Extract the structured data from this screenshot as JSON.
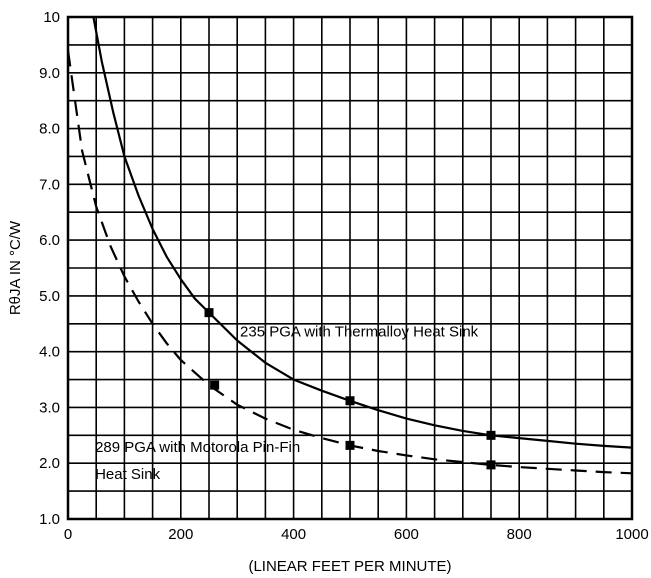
{
  "chart_data": {
    "type": "line",
    "title": "",
    "xlabel": "(LINEAR FEET PER MINUTE)",
    "ylabel": "RθJA IN °C/W",
    "xlim": [
      0,
      1000
    ],
    "ylim": [
      1.0,
      10
    ],
    "x_ticks": [
      0,
      200,
      400,
      600,
      800,
      1000
    ],
    "x_tick_labels": [
      "0",
      "200",
      "400",
      "600",
      "800",
      "1000"
    ],
    "y_ticks": [
      1.0,
      2.0,
      3.0,
      4.0,
      5.0,
      6.0,
      7.0,
      8.0,
      9.0,
      10
    ],
    "y_tick_labels": [
      "1.0",
      "2.0",
      "3.0",
      "4.0",
      "5.0",
      "6.0",
      "7.0",
      "8.0",
      "9.0",
      "10"
    ],
    "grid": true,
    "series": [
      {
        "name": "235 PGA with Thermalloy Heat Sink",
        "style": "solid",
        "x": [
          45,
          60,
          80,
          100,
          125,
          150,
          175,
          200,
          225,
          250,
          300,
          350,
          400,
          450,
          500,
          550,
          600,
          650,
          700,
          750,
          800,
          850,
          900,
          950,
          1000
        ],
        "values": [
          10.0,
          9.2,
          8.3,
          7.5,
          6.8,
          6.2,
          5.7,
          5.3,
          4.95,
          4.7,
          4.2,
          3.8,
          3.5,
          3.3,
          3.12,
          2.95,
          2.8,
          2.68,
          2.58,
          2.5,
          2.45,
          2.4,
          2.35,
          2.31,
          2.28
        ],
        "markers_x": [
          250,
          500,
          750
        ],
        "markers_y": [
          4.7,
          3.12,
          2.5
        ]
      },
      {
        "name": "289 PGA with Motorola Pin-Fin Heat Sink",
        "style": "dashed",
        "x": [
          0,
          25,
          50,
          75,
          100,
          125,
          150,
          175,
          200,
          250,
          300,
          350,
          400,
          450,
          500,
          550,
          600,
          650,
          700,
          750,
          800,
          850,
          900,
          950,
          1000
        ],
        "values": [
          9.4,
          7.6,
          6.6,
          5.9,
          5.35,
          4.9,
          4.5,
          4.15,
          3.85,
          3.4,
          3.05,
          2.8,
          2.6,
          2.45,
          2.32,
          2.22,
          2.14,
          2.07,
          2.02,
          1.97,
          1.93,
          1.9,
          1.87,
          1.84,
          1.82
        ],
        "markers_x": [
          260,
          500,
          750
        ],
        "markers_y": [
          3.4,
          2.32,
          1.97
        ]
      }
    ],
    "annotations": [
      {
        "text": "235 PGA with Thermalloy Heat Sink",
        "x": 305,
        "y": 4.27
      },
      {
        "text": "289 PGA with Motorola Pin-Fin",
        "x": 48,
        "y": 2.2
      },
      {
        "text": "Heat Sink",
        "x": 48,
        "y": 1.72
      }
    ]
  }
}
